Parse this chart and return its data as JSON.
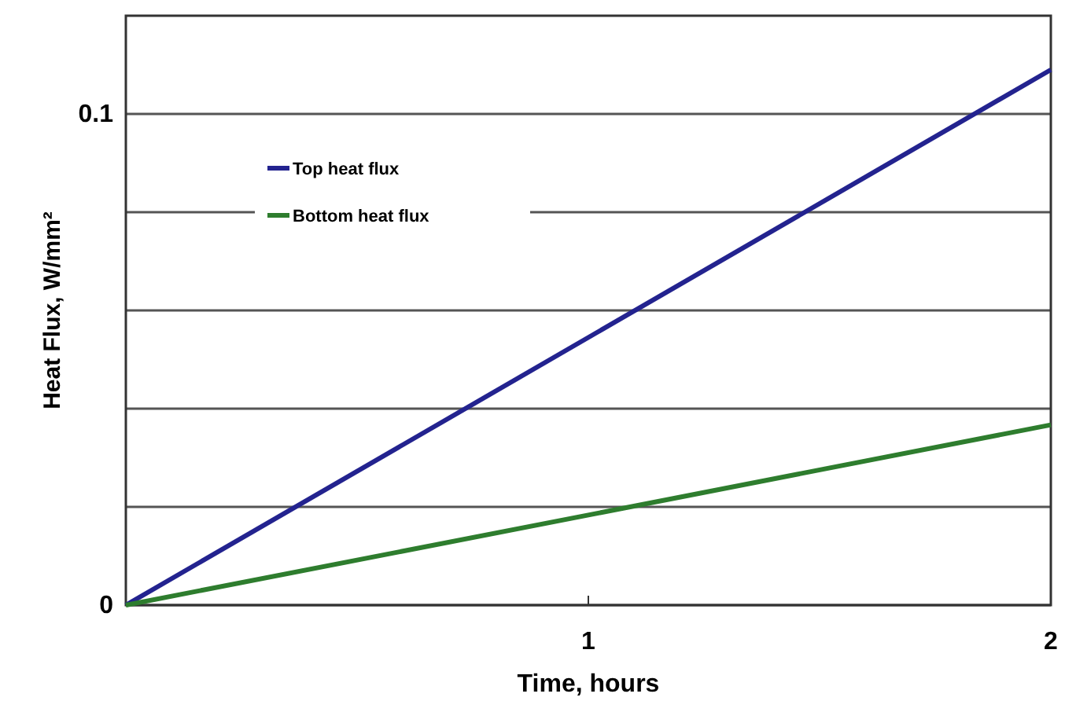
{
  "chart_data": {
    "type": "line",
    "xlabel": "Time, hours",
    "ylabel": "Heat Flux, W/mm²",
    "x": [
      0,
      2
    ],
    "series": [
      {
        "name": "Top heat flux",
        "color": "#23238f",
        "values": [
          0,
          0.109
        ]
      },
      {
        "name": "Bottom heat flux",
        "color": "#2e7d2e",
        "values": [
          0,
          0.0367
        ]
      }
    ],
    "xlim": [
      0,
      2
    ],
    "xticks": [
      1,
      2
    ],
    "ylim": [
      0,
      0.12
    ],
    "yticks": [
      0,
      {
        "value": 0.02,
        "label": null
      },
      {
        "value": 0.04,
        "label": null
      },
      {
        "value": 0.06,
        "label": null
      },
      {
        "value": 0.08,
        "label": null
      },
      0.1
    ],
    "grid": "y",
    "legend": "top left",
    "marker": "none",
    "line_style": "solid"
  }
}
